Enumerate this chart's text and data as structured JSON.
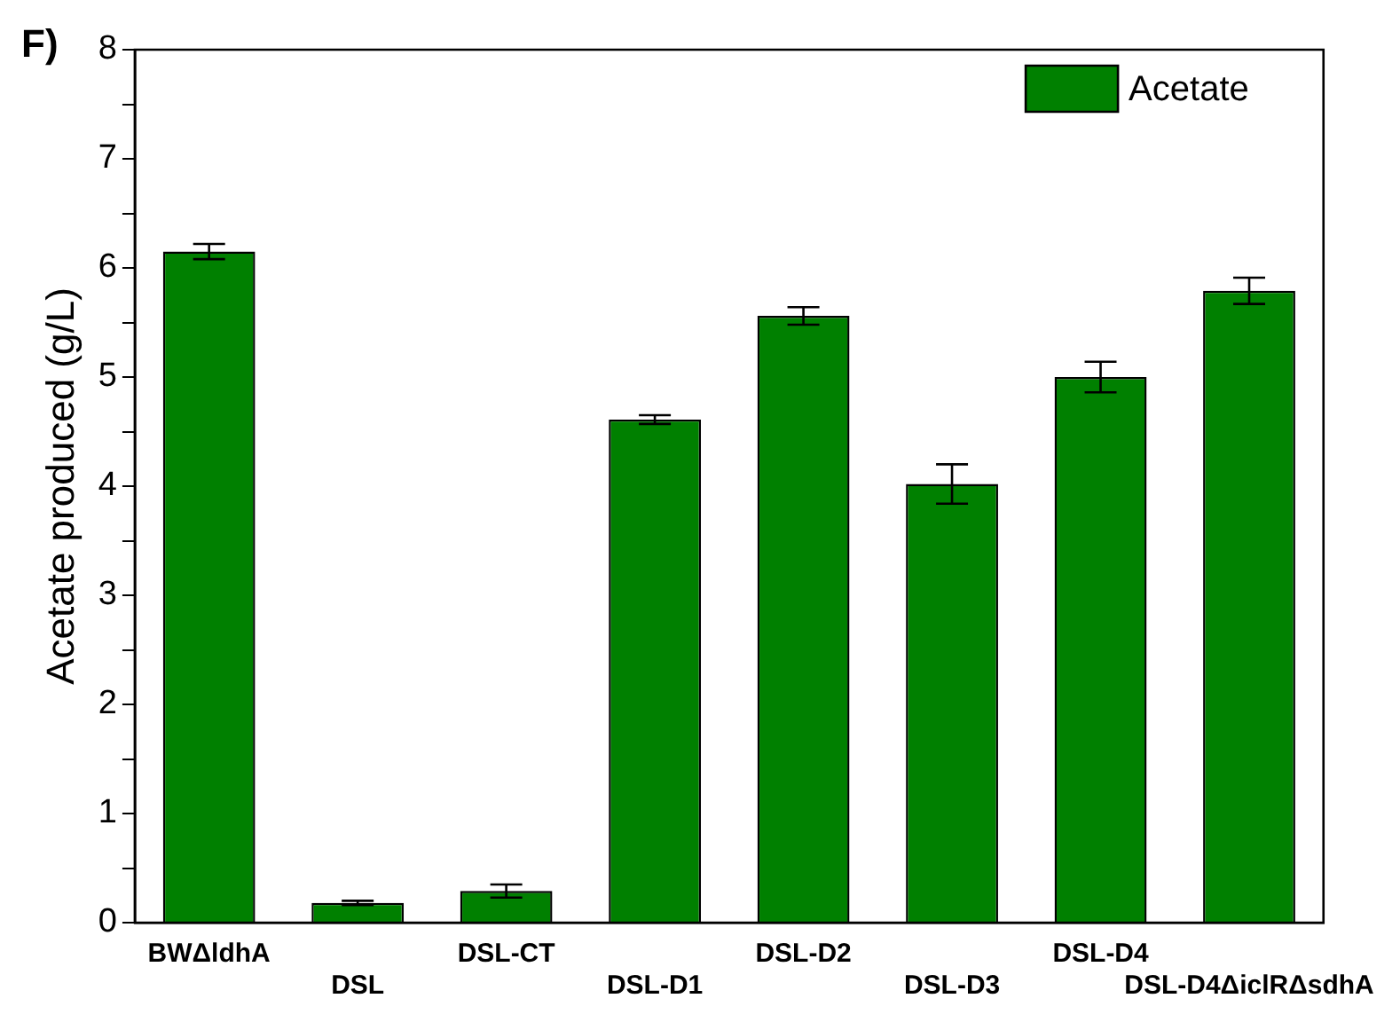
{
  "chart_data": {
    "type": "bar",
    "ylabel": "Acetate produced (g/L)",
    "annotations": [
      "F)"
    ],
    "categories": [
      "BWΔldhA",
      "DSL",
      "DSL-CT",
      "DSL-D1",
      "DSL-D2",
      "DSL-D3",
      "DSL-D4",
      "DSL-D4ΔiclRΔsdhA"
    ],
    "series": [
      {
        "name": "Acetate",
        "color": "#008000",
        "values": [
          6.15,
          0.18,
          0.29,
          4.61,
          5.56,
          4.02,
          5.0,
          5.79
        ],
        "errors": [
          0.07,
          0.02,
          0.06,
          0.04,
          0.08,
          0.18,
          0.14,
          0.12
        ]
      }
    ],
    "ylim": [
      0,
      8
    ],
    "yticks": [
      0,
      {
        "value": 0.5,
        "label": null
      },
      1,
      {
        "value": 1.5,
        "label": null
      },
      2,
      {
        "value": 2.5,
        "label": null
      },
      3,
      {
        "value": 3.5,
        "label": null
      },
      4,
      {
        "value": 4.5,
        "label": null
      },
      5,
      {
        "value": 5.5,
        "label": null
      },
      6,
      {
        "value": 6.5,
        "label": null
      },
      7,
      {
        "value": 7.5,
        "label": null
      },
      8
    ],
    "grid": false,
    "legend": "top right"
  }
}
